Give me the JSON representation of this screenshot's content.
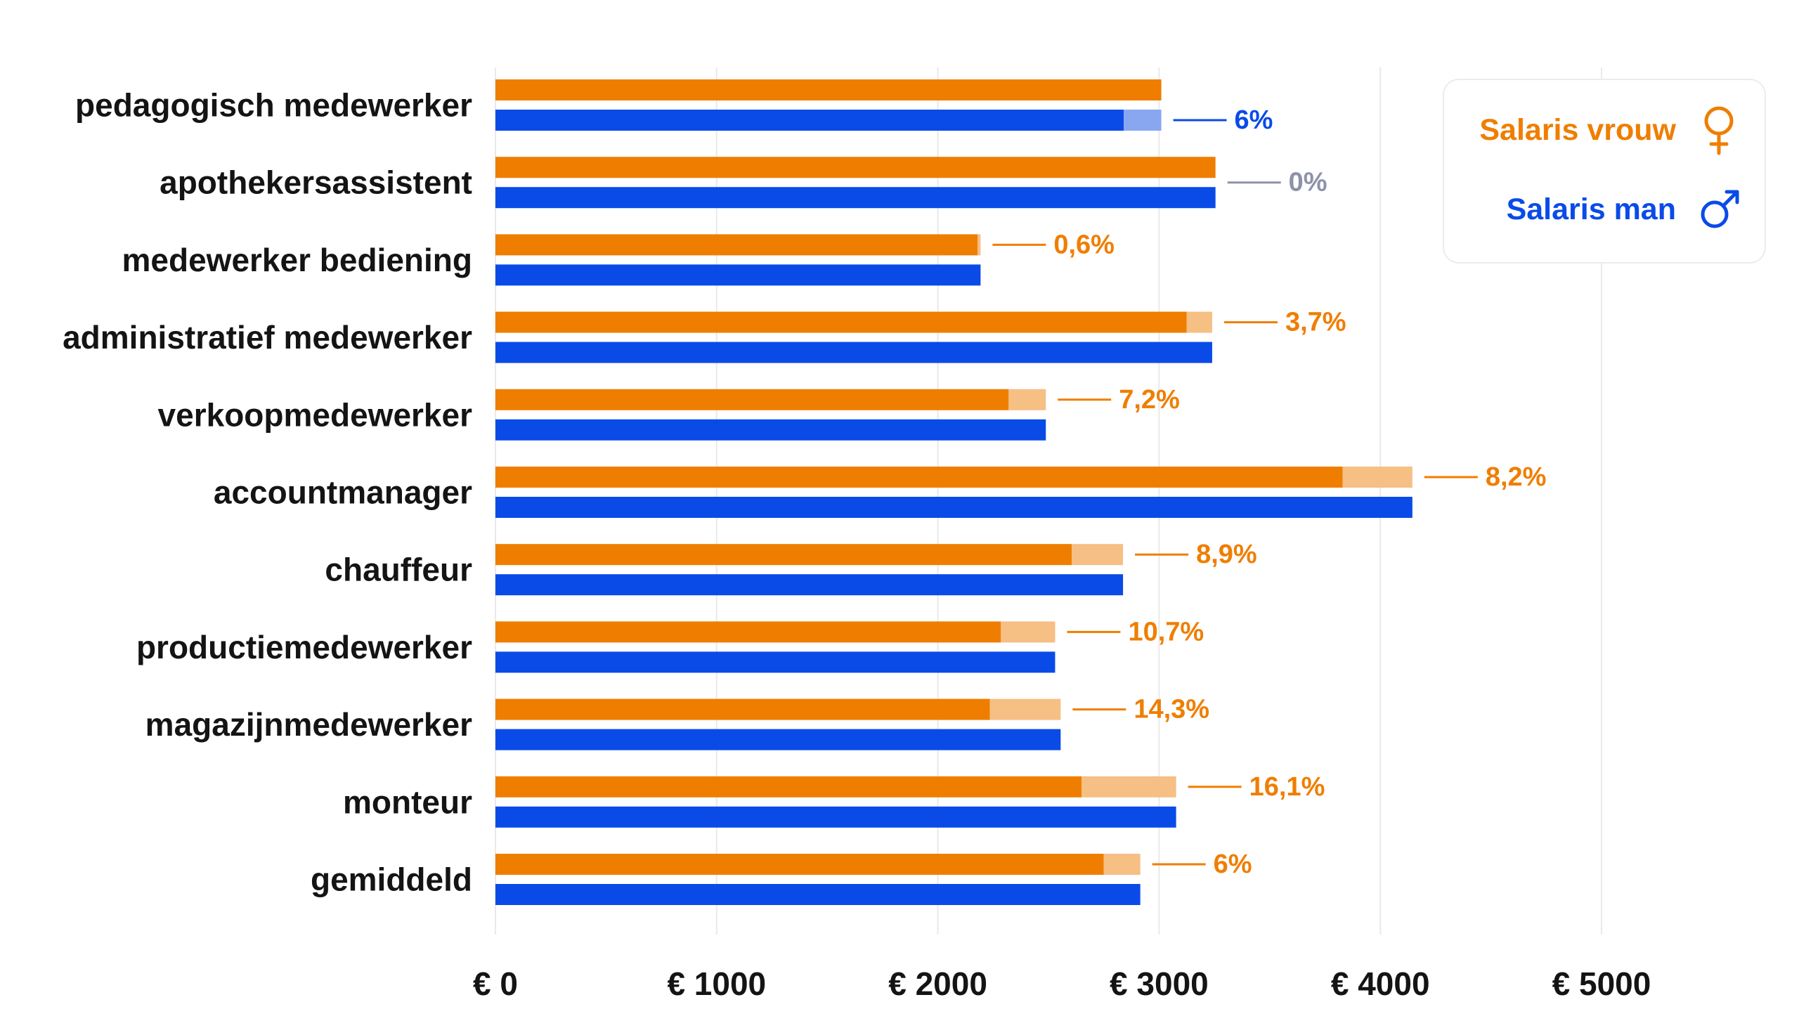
{
  "colors": {
    "vrouw": "#EF7E00",
    "vrouw_light": "#F6BF84",
    "man": "#0A4BE8",
    "man_light": "#89A7F1",
    "neutral": "#8E92A8",
    "grid": "#E9E9E9",
    "text": "#141414",
    "legend_border": "#ECECEC"
  },
  "chart_data": {
    "type": "bar",
    "orientation": "horizontal",
    "categories": [
      "pedagogisch medewerker",
      "apothekersassistent",
      "medewerker bediening",
      "administratief medewerker",
      "verkoopmedewerker",
      "accountmanager",
      "chauffeur",
      "productiemedewerker",
      "magazijnmedewerker",
      "monteur",
      "gemiddeld"
    ],
    "series": [
      {
        "name": "Salaris vrouw",
        "values": [
          3010,
          3255,
          2180,
          3125,
          2320,
          3830,
          2605,
          2285,
          2235,
          2650,
          2750
        ]
      },
      {
        "name": "Salaris man",
        "values": [
          2840,
          3255,
          2193,
          3240,
          2488,
          4145,
          2837,
          2530,
          2555,
          3077,
          2915
        ]
      }
    ],
    "gap_labels": [
      "6%",
      "0%",
      "0,6%",
      "3,7%",
      "7,2%",
      "8,2%",
      "8,9%",
      "10,7%",
      "14,3%",
      "16,1%",
      "6%"
    ],
    "xlim": [
      0,
      5000
    ],
    "x_ticks": [
      0,
      1000,
      2000,
      3000,
      4000,
      5000
    ],
    "x_tick_labels": [
      "€ 0",
      "€ 1000",
      "€ 2000",
      "€ 3000",
      "€ 4000",
      "€ 5000"
    ],
    "grid": "vertical",
    "legend": {
      "placement": "top-right",
      "icons": [
        "female-icon",
        "male-icon"
      ]
    }
  }
}
